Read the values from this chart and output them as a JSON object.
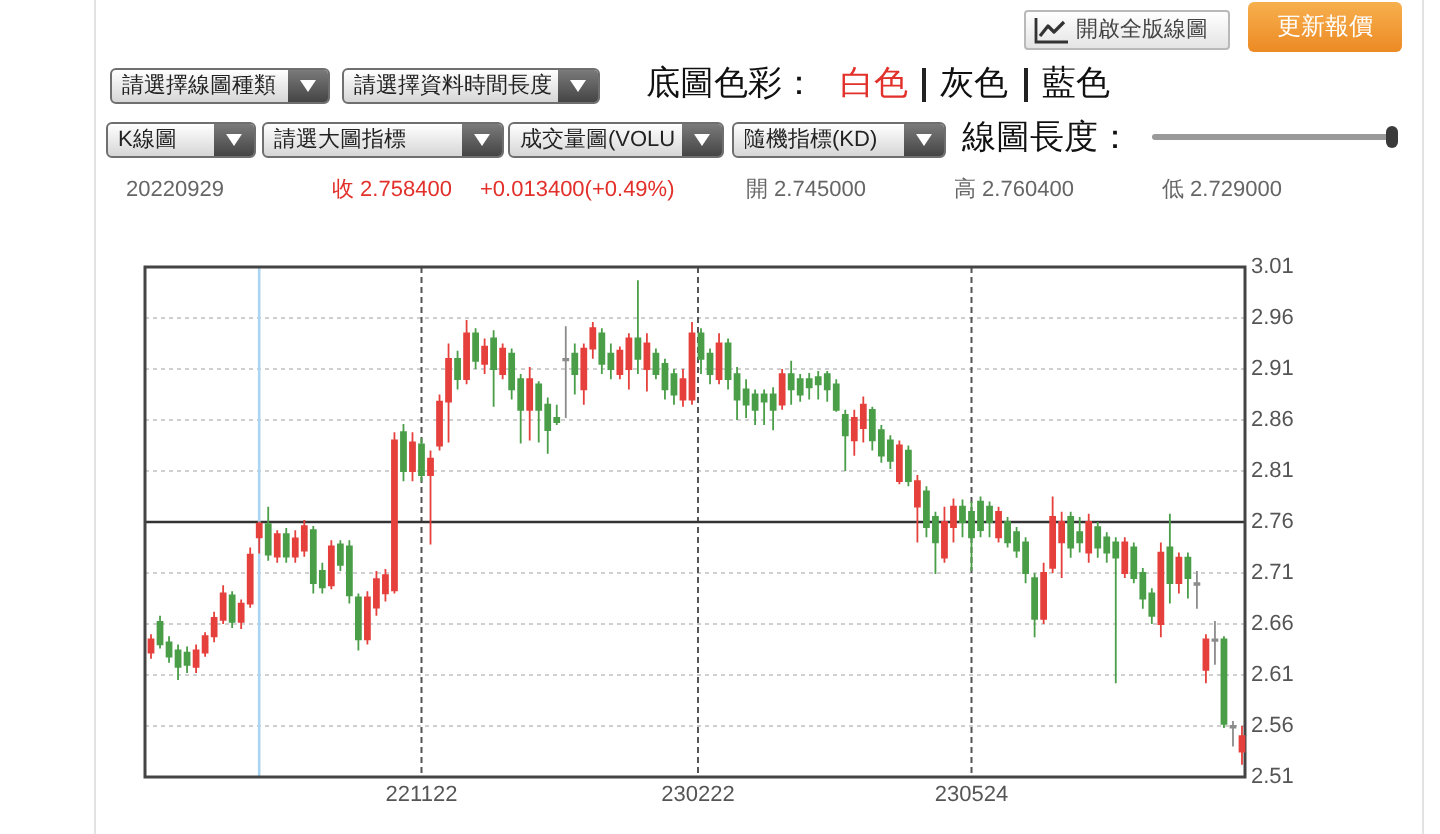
{
  "chart_data": {
    "type": "candlestick",
    "annotations": [
      "開啟全版線圖",
      "更新報價",
      "請選擇線圖種類",
      "請選擇資料時間長度",
      "底圖色彩：",
      "白色",
      "灰色",
      "藍色",
      "K線圖",
      "請選大圖指標",
      "成交量圖(VOLU",
      "隨機指標(KD)",
      "線圖長度：",
      "20220929",
      "收 2.758400",
      "+0.013400(+0.49%)",
      "開 2.745000",
      "高 2.760400",
      "低 2.729000"
    ],
    "x": [
      "2022-08-24",
      "2022-08-27",
      "2022-08-30",
      "2022-09-02",
      "2022-09-05",
      "2022-09-08",
      "2022-09-11",
      "2022-09-14",
      "2022-09-17",
      "2022-09-20",
      "2022-09-23",
      "2022-09-26",
      "2022-09-29",
      "2022-10-02",
      "2022-10-05",
      "2022-10-08",
      "2022-10-11",
      "2022-10-14",
      "2022-10-17",
      "2022-10-20",
      "2022-10-23",
      "2022-10-26",
      "2022-10-29",
      "2022-11-01",
      "2022-11-04",
      "2022-11-07",
      "2022-11-10",
      "2022-11-13",
      "2022-11-16",
      "2022-11-19",
      "2022-11-22",
      "2022-11-25",
      "2022-11-28",
      "2022-12-01",
      "2022-12-04",
      "2022-12-07",
      "2022-12-10",
      "2022-12-13",
      "2022-12-16",
      "2022-12-19",
      "2022-12-22",
      "2022-12-25",
      "2022-12-28",
      "2022-12-31",
      "2023-01-03",
      "2023-01-06",
      "2023-01-09",
      "2023-01-12",
      "2023-01-15",
      "2023-01-18",
      "2023-01-21",
      "2023-01-24",
      "2023-01-27",
      "2023-01-30",
      "2023-02-02",
      "2023-02-05",
      "2023-02-08",
      "2023-02-11",
      "2023-02-14",
      "2023-02-17",
      "2023-02-20",
      "2023-02-23",
      "2023-02-26",
      "2023-03-01",
      "2023-03-04",
      "2023-03-07",
      "2023-03-10",
      "2023-03-13",
      "2023-03-16",
      "2023-03-19",
      "2023-03-22",
      "2023-03-25",
      "2023-03-28",
      "2023-03-31",
      "2023-04-03",
      "2023-04-06",
      "2023-04-09",
      "2023-04-12",
      "2023-04-15",
      "2023-04-18",
      "2023-04-21",
      "2023-04-24",
      "2023-04-27",
      "2023-04-30",
      "2023-05-03",
      "2023-05-06",
      "2023-05-09",
      "2023-05-12",
      "2023-05-15",
      "2023-05-18",
      "2023-05-21",
      "2023-05-24",
      "2023-05-27",
      "2023-05-30",
      "2023-06-02",
      "2023-06-05",
      "2023-06-08",
      "2023-06-11",
      "2023-06-14",
      "2023-06-17",
      "2023-06-20",
      "2023-06-23",
      "2023-06-26",
      "2023-06-29",
      "2023-07-02",
      "2023-07-05",
      "2023-07-08",
      "2023-07-11",
      "2023-07-14",
      "2023-07-17",
      "2023-07-20",
      "2023-07-23",
      "2023-07-26",
      "2023-07-29",
      "2023-08-01",
      "2023-08-04",
      "2023-08-07",
      "2023-08-10",
      "2023-08-13",
      "2023-08-16",
      "2023-08-19",
      "2023-08-22"
    ],
    "ohlc": [
      [
        2.632,
        2.65,
        2.626,
        2.645
      ],
      [
        2.662,
        2.668,
        2.636,
        2.64
      ],
      [
        2.642,
        2.648,
        2.622,
        2.628
      ],
      [
        2.634,
        2.64,
        2.605,
        2.618
      ],
      [
        2.632,
        2.638,
        2.612,
        2.62
      ],
      [
        2.618,
        2.64,
        2.612,
        2.634
      ],
      [
        2.632,
        2.652,
        2.628,
        2.648
      ],
      [
        2.648,
        2.672,
        2.642,
        2.666
      ],
      [
        2.664,
        2.698,
        2.66,
        2.69
      ],
      [
        2.688,
        2.692,
        2.656,
        2.662
      ],
      [
        2.662,
        2.684,
        2.655,
        2.68
      ],
      [
        2.68,
        2.735,
        2.676,
        2.728
      ],
      [
        2.745,
        2.7604,
        2.729,
        2.7584
      ],
      [
        2.758,
        2.775,
        2.722,
        2.728
      ],
      [
        2.726,
        2.752,
        2.72,
        2.748
      ],
      [
        2.748,
        2.754,
        2.72,
        2.726
      ],
      [
        2.726,
        2.752,
        2.72,
        2.744
      ],
      [
        2.732,
        2.762,
        2.726,
        2.756
      ],
      [
        2.752,
        2.756,
        2.69,
        2.7
      ],
      [
        2.712,
        2.72,
        2.69,
        2.696
      ],
      [
        2.698,
        2.742,
        2.694,
        2.736
      ],
      [
        2.738,
        2.742,
        2.712,
        2.718
      ],
      [
        2.736,
        2.742,
        2.68,
        2.688
      ],
      [
        2.686,
        2.69,
        2.634,
        2.645
      ],
      [
        2.645,
        2.692,
        2.64,
        2.686
      ],
      [
        2.676,
        2.712,
        2.668,
        2.704
      ],
      [
        2.69,
        2.714,
        2.682,
        2.708
      ],
      [
        2.693,
        2.848,
        2.69,
        2.84
      ],
      [
        2.848,
        2.856,
        2.8,
        2.81
      ],
      [
        2.81,
        2.848,
        2.8,
        2.838
      ],
      [
        2.836,
        2.842,
        2.8,
        2.806
      ],
      [
        2.806,
        2.83,
        2.738,
        2.822
      ],
      [
        2.835,
        2.885,
        2.83,
        2.878
      ],
      [
        2.878,
        2.935,
        2.838,
        2.92
      ],
      [
        2.92,
        2.928,
        2.89,
        2.9
      ],
      [
        2.9,
        2.958,
        2.895,
        2.945
      ],
      [
        2.945,
        2.95,
        2.91,
        2.918
      ],
      [
        2.915,
        2.94,
        2.905,
        2.932
      ],
      [
        2.94,
        2.948,
        2.873,
        2.91
      ],
      [
        2.905,
        2.935,
        2.9,
        2.93
      ],
      [
        2.925,
        2.93,
        2.88,
        2.89
      ],
      [
        2.9,
        2.905,
        2.837,
        2.87
      ],
      [
        2.87,
        2.912,
        2.84,
        2.9
      ],
      [
        2.895,
        2.898,
        2.838,
        2.87
      ],
      [
        2.875,
        2.882,
        2.827,
        2.85
      ],
      [
        2.862,
        2.875,
        2.855,
        2.858
      ],
      [
        2.92,
        2.952,
        2.862,
        2.92
      ],
      [
        2.925,
        2.935,
        2.885,
        2.905
      ],
      [
        2.89,
        2.935,
        2.875,
        2.93
      ],
      [
        2.93,
        2.956,
        2.92,
        2.95
      ],
      [
        2.945,
        2.95,
        2.905,
        2.915
      ],
      [
        2.925,
        2.935,
        2.9,
        2.91
      ],
      [
        2.905,
        2.932,
        2.9,
        2.928
      ],
      [
        2.91,
        2.945,
        2.89,
        2.94
      ],
      [
        2.94,
        2.997,
        2.905,
        2.92
      ],
      [
        2.91,
        2.945,
        2.888,
        2.935
      ],
      [
        2.925,
        2.93,
        2.9,
        2.905
      ],
      [
        2.915,
        2.92,
        2.88,
        2.89
      ],
      [
        2.905,
        2.91,
        2.875,
        2.885
      ],
      [
        2.88,
        2.91,
        2.873,
        2.9
      ],
      [
        2.88,
        2.956,
        2.875,
        2.945
      ],
      [
        2.945,
        2.95,
        2.905,
        2.92
      ],
      [
        2.925,
        2.93,
        2.895,
        2.905
      ],
      [
        2.9,
        2.945,
        2.895,
        2.935
      ],
      [
        2.935,
        2.94,
        2.89,
        2.9
      ],
      [
        2.905,
        2.912,
        2.86,
        2.88
      ],
      [
        2.89,
        2.9,
        2.862,
        2.875
      ],
      [
        2.885,
        2.89,
        2.855,
        2.87
      ],
      [
        2.885,
        2.89,
        2.855,
        2.878
      ],
      [
        2.885,
        2.892,
        2.85,
        2.87
      ],
      [
        2.875,
        2.91,
        2.87,
        2.905
      ],
      [
        2.905,
        2.918,
        2.875,
        2.89
      ],
      [
        2.9,
        2.905,
        2.878,
        2.885
      ],
      [
        2.9,
        2.906,
        2.88,
        2.892
      ],
      [
        2.902,
        2.908,
        2.88,
        2.895
      ],
      [
        2.905,
        2.908,
        2.878,
        2.89
      ],
      [
        2.895,
        2.9,
        2.868,
        2.87
      ],
      [
        2.865,
        2.87,
        2.81,
        2.845
      ],
      [
        2.84,
        2.87,
        2.825,
        2.862
      ],
      [
        2.852,
        2.883,
        2.838,
        2.875
      ],
      [
        2.87,
        2.873,
        2.83,
        2.84
      ],
      [
        2.85,
        2.855,
        2.818,
        2.825
      ],
      [
        2.84,
        2.845,
        2.812,
        2.82
      ],
      [
        2.8,
        2.84,
        2.797,
        2.835
      ],
      [
        2.83,
        2.835,
        2.795,
        2.8
      ],
      [
        2.775,
        2.806,
        2.74,
        2.8
      ],
      [
        2.79,
        2.795,
        2.745,
        2.755
      ],
      [
        2.765,
        2.77,
        2.709,
        2.74
      ],
      [
        2.725,
        2.775,
        2.72,
        2.76
      ],
      [
        2.755,
        2.783,
        2.74,
        2.775
      ],
      [
        2.775,
        2.782,
        2.745,
        2.76
      ],
      [
        2.77,
        2.78,
        2.712,
        2.745
      ],
      [
        2.78,
        2.785,
        2.745,
        2.752
      ],
      [
        2.775,
        2.78,
        2.745,
        2.76
      ],
      [
        2.745,
        2.775,
        2.74,
        2.77
      ],
      [
        2.76,
        2.765,
        2.735,
        2.74
      ],
      [
        2.75,
        2.755,
        2.725,
        2.732
      ],
      [
        2.74,
        2.745,
        2.7,
        2.71
      ],
      [
        2.705,
        2.71,
        2.647,
        2.665
      ],
      [
        2.665,
        2.72,
        2.66,
        2.71
      ],
      [
        2.715,
        2.785,
        2.71,
        2.765
      ],
      [
        2.74,
        2.77,
        2.705,
        2.76
      ],
      [
        2.765,
        2.77,
        2.725,
        2.735
      ],
      [
        2.75,
        2.765,
        2.73,
        2.74
      ],
      [
        2.73,
        2.768,
        2.72,
        2.76
      ],
      [
        2.755,
        2.76,
        2.725,
        2.735
      ],
      [
        2.745,
        2.75,
        2.72,
        2.73
      ],
      [
        2.74,
        2.745,
        2.602,
        2.725
      ],
      [
        2.71,
        2.745,
        2.705,
        2.74
      ],
      [
        2.735,
        2.74,
        2.7,
        2.705
      ],
      [
        2.71,
        2.715,
        2.675,
        2.685
      ],
      [
        2.69,
        2.695,
        2.66,
        2.668
      ],
      [
        2.66,
        2.74,
        2.647,
        2.73
      ],
      [
        2.735,
        2.768,
        2.68,
        2.7
      ],
      [
        2.7,
        2.73,
        2.69,
        2.725
      ],
      [
        2.725,
        2.73,
        2.685,
        2.705
      ],
      [
        2.7,
        2.712,
        2.675,
        2.7
      ],
      [
        2.615,
        2.65,
        2.602,
        2.645
      ],
      [
        2.645,
        2.663,
        2.62,
        2.645
      ],
      [
        2.645,
        2.648,
        2.558,
        2.562
      ],
      [
        2.56,
        2.565,
        2.54,
        2.56
      ],
      [
        2.535,
        2.56,
        2.522,
        2.55
      ]
    ],
    "colors": [
      "#e5403c",
      "#4a9e48",
      "#4a9e48",
      "#4a9e48",
      "#4a9e48",
      "#e5403c",
      "#e5403c",
      "#e5403c",
      "#e5403c",
      "#4a9e48",
      "#e5403c",
      "#e5403c",
      "#e5403c",
      "#4a9e48",
      "#e5403c",
      "#4a9e48",
      "#e5403c",
      "#e5403c",
      "#4a9e48",
      "#4a9e48",
      "#e5403c",
      "#4a9e48",
      "#4a9e48",
      "#4a9e48",
      "#e5403c",
      "#e5403c",
      "#e5403c",
      "#e5403c",
      "#4a9e48",
      "#e5403c",
      "#4a9e48",
      "#e5403c",
      "#e5403c",
      "#e5403c",
      "#4a9e48",
      "#e5403c",
      "#4a9e48",
      "#e5403c",
      "#4a9e48",
      "#e5403c",
      "#4a9e48",
      "#4a9e48",
      "#e5403c",
      "#4a9e48",
      "#4a9e48",
      "#4a9e48",
      "#8c8c8c",
      "#4a9e48",
      "#e5403c",
      "#e5403c",
      "#4a9e48",
      "#4a9e48",
      "#e5403c",
      "#e5403c",
      "#4a9e48",
      "#e5403c",
      "#4a9e48",
      "#4a9e48",
      "#4a9e48",
      "#e5403c",
      "#e5403c",
      "#4a9e48",
      "#4a9e48",
      "#e5403c",
      "#4a9e48",
      "#4a9e48",
      "#4a9e48",
      "#4a9e48",
      "#4a9e48",
      "#4a9e48",
      "#e5403c",
      "#4a9e48",
      "#4a9e48",
      "#4a9e48",
      "#4a9e48",
      "#4a9e48",
      "#4a9e48",
      "#4a9e48",
      "#e5403c",
      "#e5403c",
      "#4a9e48",
      "#4a9e48",
      "#4a9e48",
      "#e5403c",
      "#4a9e48",
      "#e5403c",
      "#4a9e48",
      "#4a9e48",
      "#e5403c",
      "#e5403c",
      "#4a9e48",
      "#4a9e48",
      "#4a9e48",
      "#4a9e48",
      "#e5403c",
      "#4a9e48",
      "#4a9e48",
      "#4a9e48",
      "#4a9e48",
      "#e5403c",
      "#e5403c",
      "#e5403c",
      "#4a9e48",
      "#4a9e48",
      "#e5403c",
      "#4a9e48",
      "#4a9e48",
      "#4a9e48",
      "#e5403c",
      "#4a9e48",
      "#4a9e48",
      "#4a9e48",
      "#e5403c",
      "#4a9e48",
      "#e5403c",
      "#4a9e48",
      "#8c8c8c",
      "#e5403c",
      "#8c8c8c",
      "#4a9e48",
      "#8c8c8c",
      "#e5403c"
    ],
    "xlim": [
      "2022-08-22",
      "2023-08-23"
    ],
    "xticks": [
      {
        "value": "2022-11-22",
        "label": "221122"
      },
      {
        "value": "2023-02-22",
        "label": "230222"
      },
      {
        "value": "2023-05-24",
        "label": "230524"
      }
    ],
    "ylim": [
      2.51,
      3.01
    ],
    "yticks": [
      2.51,
      2.56,
      2.61,
      2.66,
      2.71,
      2.76,
      2.81,
      2.86,
      2.91,
      2.96,
      3.01
    ],
    "grid": true,
    "ref_lines": [
      {
        "axis": "y",
        "value": 2.76,
        "color": "#333333"
      },
      {
        "axis": "x",
        "value": "2022-09-29",
        "color": "#a9d5f2"
      }
    ]
  }
}
